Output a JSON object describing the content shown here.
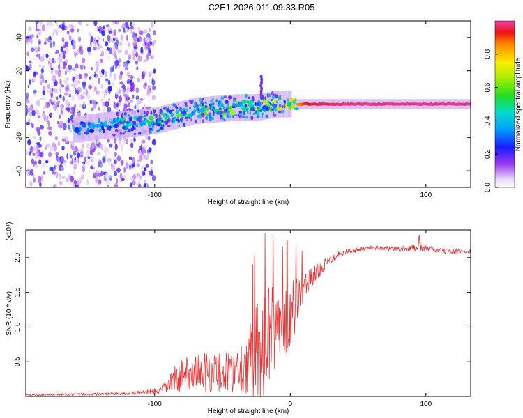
{
  "title": "C2E1.2026.011.09.33.R05",
  "chart_data": [
    {
      "type": "heatmap",
      "xlabel": "Height of straight line (km)",
      "ylabel": "Frequency (Hz)",
      "xlim": [
        -195,
        133
      ],
      "ylim": [
        -50,
        50
      ],
      "xticks": [
        -100,
        0,
        100
      ],
      "xtick_labels": [
        "-100",
        "",
        "100"
      ],
      "yticks": [
        -40,
        -20,
        0,
        20,
        40
      ],
      "ytick_labels": [
        "-40",
        "-20",
        "0",
        "20",
        "40"
      ],
      "colorbar": {
        "label": "Normalized spectral amplitude",
        "range": [
          0,
          1
        ],
        "ticks": [
          0.0,
          0.2,
          0.4,
          0.6,
          0.8
        ],
        "tick_labels": [
          "0.0",
          "0.2",
          "0.4",
          "0.6",
          "0.8"
        ]
      },
      "ridge": [
        {
          "x": -155,
          "f": -15,
          "amp": 0.45
        },
        {
          "x": -140,
          "f": -13,
          "amp": 0.45
        },
        {
          "x": -120,
          "f": -12,
          "amp": 0.5
        },
        {
          "x": -100,
          "f": -10,
          "amp": 0.55
        },
        {
          "x": -85,
          "f": -7,
          "amp": 0.6
        },
        {
          "x": -70,
          "f": -4,
          "amp": 0.6
        },
        {
          "x": -55,
          "f": -3,
          "amp": 0.6
        },
        {
          "x": -40,
          "f": -2,
          "amp": 0.65
        },
        {
          "x": -25,
          "f": -2,
          "amp": 0.6
        },
        {
          "x": -10,
          "f": 0,
          "amp": 0.75
        },
        {
          "x": 0,
          "f": 0,
          "amp": 0.8
        },
        {
          "x": 15,
          "f": 0,
          "amp": 0.95
        },
        {
          "x": 50,
          "f": 0,
          "amp": 0.98
        },
        {
          "x": 90,
          "f": 0,
          "amp": 0.98
        },
        {
          "x": 133,
          "f": 0,
          "amp": 0.98
        }
      ]
    },
    {
      "type": "line",
      "xlabel": "Height of straight line (km)",
      "ylabel": "SNR (10 * v/v)",
      "ylabel_multiplier": "(x10⁴)",
      "xlim": [
        -195,
        133
      ],
      "ylim": [
        0,
        2.4
      ],
      "xticks": [
        -100,
        0,
        100
      ],
      "xtick_labels": [
        "-100",
        "0",
        "100"
      ],
      "yticks": [
        0.5,
        1.0,
        1.5,
        2.0
      ],
      "ytick_labels": [
        "0.5",
        "1.0",
        "1.5",
        "2.0"
      ],
      "series_color": "#ee3333",
      "envelope": {
        "x": [
          -195,
          -120,
          -95,
          -85,
          -75,
          -60,
          -45,
          -35,
          -28,
          -22,
          -15,
          -8,
          0,
          8,
          15,
          25,
          35,
          45,
          60,
          80,
          95,
          110,
          133
        ],
        "mean": [
          0.02,
          0.04,
          0.08,
          0.25,
          0.35,
          0.35,
          0.35,
          0.45,
          0.55,
          0.7,
          0.9,
          1.0,
          1.2,
          1.45,
          1.7,
          1.9,
          2.05,
          2.1,
          2.15,
          2.12,
          2.15,
          2.1,
          2.08
        ],
        "noise": [
          0.01,
          0.02,
          0.05,
          0.2,
          0.25,
          0.3,
          0.3,
          0.4,
          0.6,
          0.8,
          0.7,
          0.5,
          0.5,
          0.3,
          0.15,
          0.08,
          0.05,
          0.04,
          0.03,
          0.04,
          0.05,
          0.04,
          0.04
        ]
      }
    }
  ]
}
